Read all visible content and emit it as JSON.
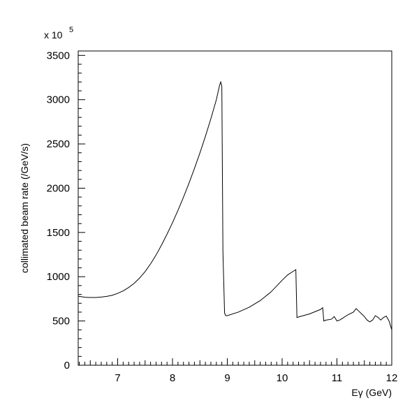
{
  "chart_data": {
    "type": "line",
    "title": "",
    "xlabel": "Eγ (GeV)",
    "ylabel": "collimated beam rate (/GeV/s)",
    "y_multiplier": "x 10",
    "y_multiplier_exponent": "5",
    "xlim": [
      6.28,
      12
    ],
    "ylim": [
      0,
      3550
    ],
    "x_ticks": [
      7,
      8,
      9,
      10,
      11,
      12
    ],
    "y_ticks": [
      0,
      500,
      1000,
      1500,
      2000,
      2500,
      3000,
      3500
    ],
    "x_tick_labels": [
      "7",
      "8",
      "9",
      "10",
      "11",
      "12"
    ],
    "y_tick_labels": [
      "0",
      "500",
      "1000",
      "1500",
      "2000",
      "2500",
      "3000",
      "3500"
    ],
    "grid": false,
    "series": [
      {
        "name": "",
        "color": "#000000",
        "x": [
          6.28,
          6.4,
          6.5,
          6.6,
          6.7,
          6.8,
          6.9,
          7.0,
          7.1,
          7.2,
          7.3,
          7.4,
          7.5,
          7.6,
          7.7,
          7.8,
          7.9,
          8.0,
          8.1,
          8.2,
          8.3,
          8.4,
          8.5,
          8.6,
          8.7,
          8.8,
          8.86,
          8.88,
          8.9,
          8.92,
          8.95,
          8.97,
          9.0,
          9.2,
          9.4,
          9.6,
          9.8,
          10.0,
          10.1,
          10.2,
          10.25,
          10.27,
          10.3,
          10.5,
          10.7,
          10.74,
          10.76,
          10.8,
          10.9,
          10.95,
          11.0,
          11.05,
          11.1,
          11.2,
          11.3,
          11.35,
          11.4,
          11.45,
          11.5,
          11.55,
          11.6,
          11.65,
          11.7,
          11.75,
          11.8,
          11.85,
          11.9,
          11.95,
          12.0
        ],
        "y": [
          780,
          768,
          765,
          765,
          770,
          778,
          790,
          812,
          840,
          878,
          925,
          985,
          1058,
          1145,
          1245,
          1358,
          1480,
          1610,
          1750,
          1898,
          2055,
          2222,
          2398,
          2585,
          2785,
          3000,
          3165,
          3200,
          3150,
          1280,
          590,
          560,
          560,
          600,
          655,
          730,
          830,
          960,
          1020,
          1060,
          1080,
          540,
          545,
          580,
          630,
          650,
          500,
          510,
          520,
          550,
          500,
          510,
          530,
          570,
          600,
          640,
          610,
          580,
          550,
          510,
          490,
          510,
          560,
          540,
          510,
          540,
          555,
          500,
          400
        ]
      }
    ]
  }
}
